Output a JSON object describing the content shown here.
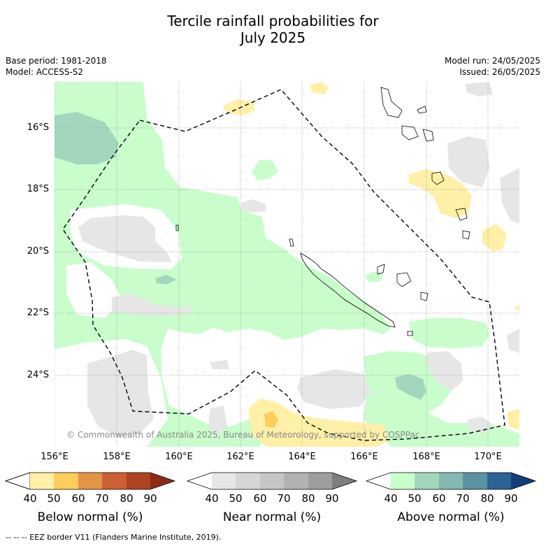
{
  "title_line1": "Tercile rainfall probabilities for",
  "title_line2": "July 2025",
  "meta_left": {
    "base_period": "Base period: 1981-2018",
    "model": "Model: ACCESS-S2"
  },
  "meta_right": {
    "model_run": "Model run: 24/05/2025",
    "issued": "Issued: 26/05/2025"
  },
  "lat_labels": [
    "16°S",
    "18°S",
    "20°S",
    "22°S",
    "24°S"
  ],
  "lon_labels": [
    "156°E",
    "158°E",
    "160°E",
    "162°E",
    "164°E",
    "166°E",
    "168°E",
    "170°E"
  ],
  "copyright": "© Commonwealth of Australia 2025, Bureau of Meteorology, supported by COSPPac",
  "colorbars": [
    {
      "title": "Below normal (%)",
      "ticks": [
        "40",
        "50",
        "60",
        "70",
        "80",
        "90"
      ],
      "colors": [
        "#ffffff",
        "#fff0a8",
        "#ffcd5c",
        "#e39446",
        "#cc6032",
        "#ad4424",
        "#8c2c18"
      ]
    },
    {
      "title": "Near normal (%)",
      "ticks": [
        "40",
        "50",
        "60",
        "70",
        "80",
        "90"
      ],
      "colors": [
        "#ffffff",
        "#e6e6e6",
        "#d6d6d6",
        "#c6c6c6",
        "#b2b2b2",
        "#9e9e9e",
        "#7e7e7e"
      ]
    },
    {
      "title": "Above normal (%)",
      "ticks": [
        "40",
        "50",
        "60",
        "70",
        "80",
        "90"
      ],
      "colors": [
        "#ffffff",
        "#c9fdcc",
        "#a3d7bd",
        "#84b8b0",
        "#5a93a1",
        "#2e6196",
        "#143e7a"
      ]
    }
  ],
  "footnote": "--  --  -- EEZ border V11 (Flanders Marine Institute, 2019)."
}
